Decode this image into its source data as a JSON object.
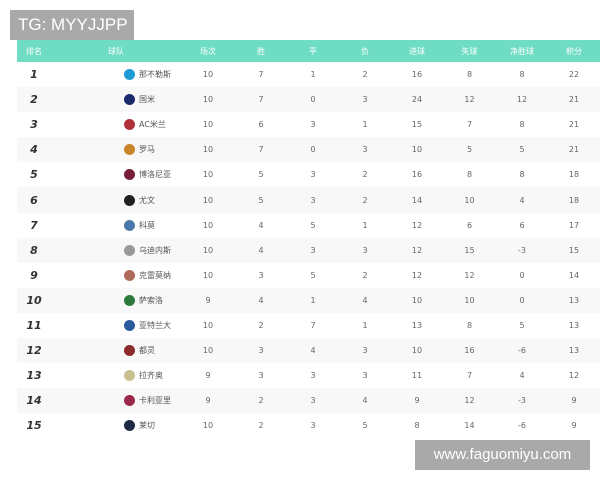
{
  "watermark_top": "TG: MYYJJPP",
  "watermark_bottom": "www.faguomiyu.com",
  "header_color": "#6fdcc4",
  "columns": [
    "排名",
    "球队",
    "场次",
    "胜",
    "平",
    "负",
    "进球",
    "失球",
    "净胜球",
    "积分"
  ],
  "rows": [
    {
      "rank": "1",
      "team": "那不勒斯",
      "logo": "napoli",
      "color": "#1e9ad6",
      "played": "10",
      "w": "7",
      "d": "1",
      "l": "2",
      "gf": "16",
      "ga": "8",
      "gd": "8",
      "pts": "22"
    },
    {
      "rank": "2",
      "team": "国米",
      "logo": "inter",
      "color": "#1a2a6c",
      "played": "10",
      "w": "7",
      "d": "0",
      "l": "3",
      "gf": "24",
      "ga": "12",
      "gd": "12",
      "pts": "21"
    },
    {
      "rank": "3",
      "team": "AC米兰",
      "logo": "milan",
      "color": "#b0303a",
      "played": "10",
      "w": "6",
      "d": "3",
      "l": "1",
      "gf": "15",
      "ga": "7",
      "gd": "8",
      "pts": "21"
    },
    {
      "rank": "4",
      "team": "罗马",
      "logo": "roma",
      "color": "#c9852a",
      "played": "10",
      "w": "7",
      "d": "0",
      "l": "3",
      "gf": "10",
      "ga": "5",
      "gd": "5",
      "pts": "21"
    },
    {
      "rank": "5",
      "team": "博洛尼亚",
      "logo": "bologna",
      "color": "#7a1f3a",
      "played": "10",
      "w": "5",
      "d": "3",
      "l": "2",
      "gf": "16",
      "ga": "8",
      "gd": "8",
      "pts": "18"
    },
    {
      "rank": "6",
      "team": "尤文",
      "logo": "juventus",
      "color": "#222222",
      "played": "10",
      "w": "5",
      "d": "3",
      "l": "2",
      "gf": "14",
      "ga": "10",
      "gd": "4",
      "pts": "18"
    },
    {
      "rank": "7",
      "team": "科莫",
      "logo": "como",
      "color": "#4a78a8",
      "played": "10",
      "w": "4",
      "d": "5",
      "l": "1",
      "gf": "12",
      "ga": "6",
      "gd": "6",
      "pts": "17"
    },
    {
      "rank": "8",
      "team": "乌迪内斯",
      "logo": "udinese",
      "color": "#999999",
      "played": "10",
      "w": "4",
      "d": "3",
      "l": "3",
      "gf": "12",
      "ga": "15",
      "gd": "-3",
      "pts": "15"
    },
    {
      "rank": "9",
      "team": "克雷莫纳",
      "logo": "cremonese",
      "color": "#b06a5a",
      "played": "10",
      "w": "3",
      "d": "5",
      "l": "2",
      "gf": "12",
      "ga": "12",
      "gd": "0",
      "pts": "14"
    },
    {
      "rank": "10",
      "team": "萨索洛",
      "logo": "sassuolo",
      "color": "#2e7a3c",
      "played": "9",
      "w": "4",
      "d": "1",
      "l": "4",
      "gf": "10",
      "ga": "10",
      "gd": "0",
      "pts": "13"
    },
    {
      "rank": "11",
      "team": "亚特兰大",
      "logo": "atalanta",
      "color": "#2a5aa0",
      "played": "10",
      "w": "2",
      "d": "7",
      "l": "1",
      "gf": "13",
      "ga": "8",
      "gd": "5",
      "pts": "13"
    },
    {
      "rank": "12",
      "team": "都灵",
      "logo": "torino",
      "color": "#8a2a2a",
      "played": "10",
      "w": "3",
      "d": "4",
      "l": "3",
      "gf": "10",
      "ga": "16",
      "gd": "-6",
      "pts": "13"
    },
    {
      "rank": "13",
      "team": "拉齐奥",
      "logo": "lazio",
      "color": "#c8c090",
      "played": "9",
      "w": "3",
      "d": "3",
      "l": "3",
      "gf": "11",
      "ga": "7",
      "gd": "4",
      "pts": "12"
    },
    {
      "rank": "14",
      "team": "卡利亚里",
      "logo": "cagliari",
      "color": "#9a2a4a",
      "played": "9",
      "w": "2",
      "d": "3",
      "l": "4",
      "gf": "9",
      "ga": "12",
      "gd": "-3",
      "pts": "9"
    },
    {
      "rank": "15",
      "team": "莱切",
      "logo": "lecce",
      "color": "#1e2a44",
      "played": "10",
      "w": "2",
      "d": "3",
      "l": "5",
      "gf": "8",
      "ga": "14",
      "gd": "-6",
      "pts": "9"
    }
  ]
}
